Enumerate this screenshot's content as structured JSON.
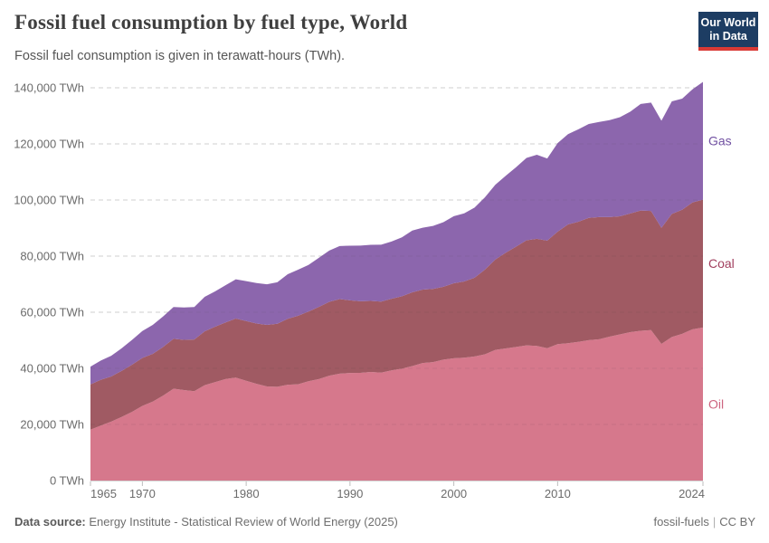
{
  "header": {
    "title": "Fossil fuel consumption by fuel type, World",
    "subtitle": "Fossil fuel consumption is given in terawatt-hours (TWh).",
    "logo": {
      "line1": "Our World",
      "line2": "in Data",
      "bg_color": "#1d3d63",
      "accent_color": "#d93a35"
    }
  },
  "chart_data": {
    "type": "area",
    "stacked": true,
    "title": "Fossil fuel consumption by fuel type, World",
    "ylabel": "",
    "xlabel": "",
    "grid": true,
    "ylim": [
      0,
      140000
    ],
    "ytick_step": 20000,
    "ytick_suffix": " TWh",
    "xticks": [
      1965,
      1970,
      1980,
      1990,
      2000,
      2010,
      2024
    ],
    "legend_position": "right-edge-labels",
    "x": [
      1965,
      1966,
      1967,
      1968,
      1969,
      1970,
      1971,
      1972,
      1973,
      1974,
      1975,
      1976,
      1977,
      1978,
      1979,
      1980,
      1981,
      1982,
      1983,
      1984,
      1985,
      1986,
      1987,
      1988,
      1989,
      1990,
      1991,
      1992,
      1993,
      1994,
      1995,
      1996,
      1997,
      1998,
      1999,
      2000,
      2001,
      2002,
      2003,
      2004,
      2005,
      2006,
      2007,
      2008,
      2009,
      2010,
      2011,
      2012,
      2013,
      2014,
      2015,
      2016,
      2017,
      2018,
      2019,
      2020,
      2021,
      2022,
      2023,
      2024
    ],
    "series": [
      {
        "name": "Oil",
        "color": "#d6788c",
        "label_color": "#cd647f",
        "values": [
          18146,
          19600,
          21007,
          22679,
          24459,
          26618,
          28128,
          30290,
          32741,
          32262,
          31870,
          33976,
          35073,
          36184,
          36679,
          35577,
          34468,
          33565,
          33417,
          34160,
          34303,
          35410,
          36179,
          37371,
          38086,
          38331,
          38402,
          38693,
          38477,
          39283,
          39884,
          40792,
          41884,
          42207,
          43107,
          43574,
          43805,
          44222,
          45013,
          46580,
          47089,
          47603,
          48170,
          47977,
          47167,
          48631,
          48940,
          49455,
          50034,
          50366,
          51297,
          52086,
          52894,
          53373,
          53619,
          48712,
          51170,
          52312,
          53926,
          54564
        ]
      },
      {
        "name": "Coal",
        "color": "#a05a63",
        "label_color": "#a13f5e",
        "values": [
          16140,
          16330,
          16095,
          16405,
          16850,
          17079,
          17046,
          17346,
          17797,
          17890,
          18397,
          19193,
          19746,
          20153,
          21050,
          21286,
          21497,
          21903,
          22472,
          23488,
          24439,
          24820,
          25704,
          26318,
          26609,
          25905,
          25509,
          25327,
          25300,
          25508,
          25793,
          26294,
          26191,
          26120,
          25975,
          26738,
          27169,
          28069,
          30198,
          32217,
          34128,
          35801,
          37494,
          38191,
          38338,
          40087,
          42340,
          42784,
          43601,
          43561,
          42612,
          42098,
          42319,
          42883,
          42459,
          41372,
          43855,
          44232,
          45227,
          45565
        ]
      },
      {
        "name": "Gas",
        "color": "#8c66ad",
        "label_color": "#7151a2",
        "values": [
          6304,
          6868,
          7377,
          8050,
          8825,
          9617,
          10290,
          10861,
          11300,
          11552,
          11600,
          12304,
          12593,
          13272,
          13990,
          14240,
          14418,
          14505,
          14801,
          15900,
          16420,
          16609,
          17500,
          18305,
          18901,
          19484,
          19850,
          19994,
          20302,
          20400,
          21021,
          22036,
          22029,
          22434,
          23007,
          23928,
          24283,
          25007,
          25770,
          26665,
          27421,
          28269,
          29343,
          29982,
          29299,
          31555,
          32200,
          32976,
          33481,
          33886,
          34572,
          35316,
          36298,
          37994,
          38631,
          38165,
          40137,
          39574,
          40340,
          41959
        ]
      }
    ]
  },
  "footer": {
    "datasource_label": "Data source:",
    "datasource_text": " Energy Institute - Statistical Review of World Energy (2025)",
    "link_text": "fossil-fuels",
    "separator": "|",
    "license_text": "CC BY"
  }
}
